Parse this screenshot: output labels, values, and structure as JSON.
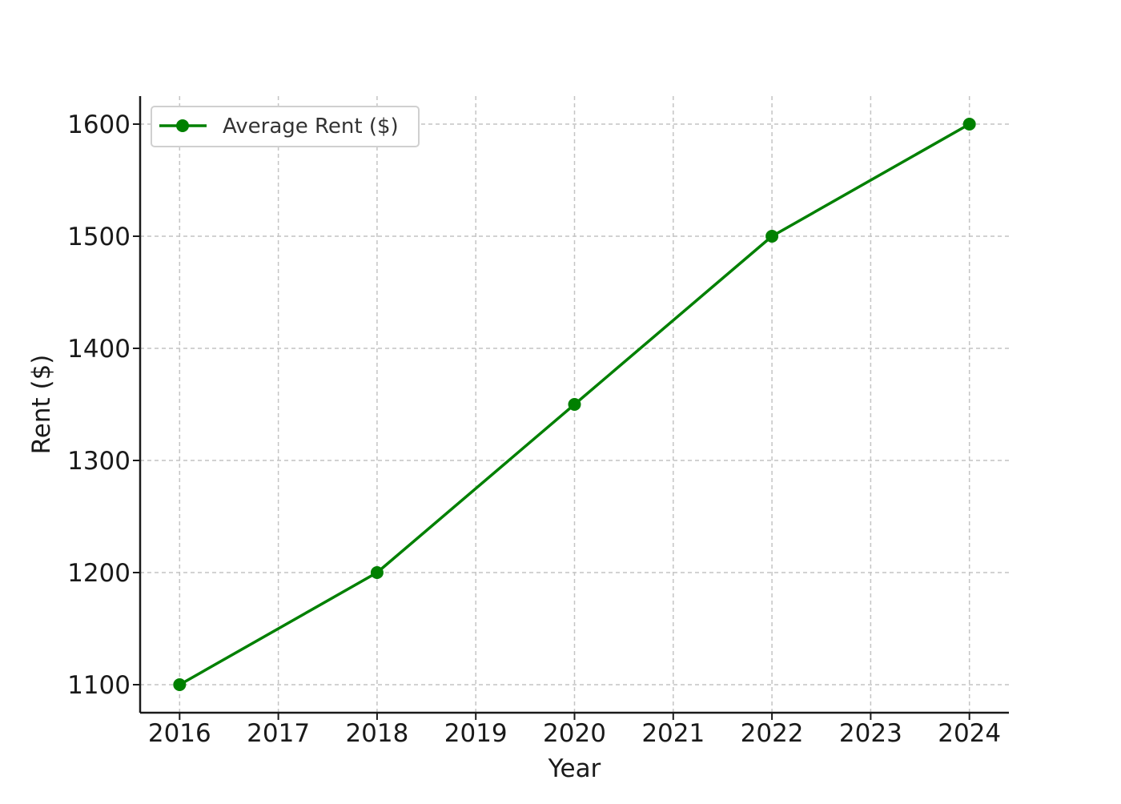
{
  "chart_data": {
    "type": "line",
    "title": "",
    "xlabel": "Year",
    "ylabel": "Rent ($)",
    "x": [
      2016,
      2018,
      2020,
      2022,
      2024
    ],
    "x_ticks": [
      "2016",
      "2017",
      "2018",
      "2019",
      "2020",
      "2021",
      "2022",
      "2023",
      "2024"
    ],
    "y_ticks": [
      "1100",
      "1200",
      "1300",
      "1400",
      "1500",
      "1600"
    ],
    "xlim": [
      2015.6,
      2024.4
    ],
    "ylim": [
      1075,
      1625
    ],
    "grid": true,
    "grid_style": "dashed",
    "legend_position": "top-left",
    "series": [
      {
        "name": "Average Rent ($)",
        "color": "#008000",
        "marker": "circle",
        "values": [
          1100,
          1200,
          1350,
          1500,
          1600
        ]
      }
    ]
  }
}
